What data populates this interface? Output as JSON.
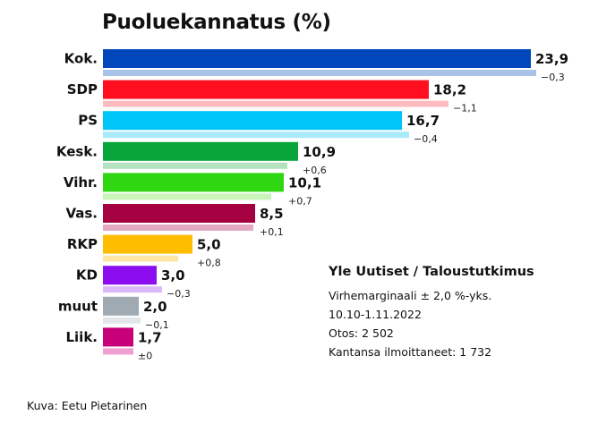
{
  "chart_data": {
    "type": "bar",
    "title": "Puoluekannatus (%)",
    "categories": [
      "Kok.",
      "SDP",
      "PS",
      "Kesk.",
      "Vihr.",
      "Vas.",
      "RKP",
      "KD",
      "muut",
      "Liik."
    ],
    "values": [
      23.9,
      18.2,
      16.7,
      10.9,
      10.1,
      8.5,
      5.0,
      3.0,
      2.0,
      1.7
    ],
    "value_labels": [
      "23,9",
      "18,2",
      "16,7",
      "10,9",
      "10,1",
      "8,5",
      "5,0",
      "3,0",
      "2,0",
      "1,7"
    ],
    "previous_values": [
      24.2,
      19.3,
      17.1,
      10.3,
      9.4,
      8.4,
      4.2,
      3.3,
      2.1,
      1.7
    ],
    "changes": [
      -0.3,
      -1.1,
      -0.4,
      0.6,
      0.7,
      0.1,
      0.8,
      -0.3,
      -0.1,
      0.0
    ],
    "change_labels": [
      "−0,3",
      "−1,1",
      "−0,4",
      "+0,6",
      "+0,7",
      "+0,1",
      "+0,8",
      "−0,3",
      "−0,1",
      "±0"
    ],
    "colors": [
      "#0047bb",
      "#ff0f1f",
      "#00c5f8",
      "#0aa53a",
      "#2fd611",
      "#a5003f",
      "#ffbd00",
      "#8c0ef0",
      "#a0aab2",
      "#c8007a"
    ],
    "previous_colors": [
      "#a9c3e8",
      "#ffbcc0",
      "#a9eafb",
      "#b4e1c0",
      "#c8f3b9",
      "#e3a9c0",
      "#ffe6a6",
      "#dbb9f9",
      "#e2e6e9",
      "#ee9fd0"
    ],
    "xlim": [
      0,
      25
    ],
    "grid": false,
    "legend": "none"
  },
  "info": {
    "heading": "Yle Uutiset / Taloustutkimus",
    "lines": [
      "Virhemarginaali ± 2,0 %-yks.",
      "10.10-1.11.2022",
      "Otos: 2 502",
      "Kantansa ilmoittaneet: 1 732"
    ]
  },
  "credit": "Kuva: Eetu Pietarinen"
}
